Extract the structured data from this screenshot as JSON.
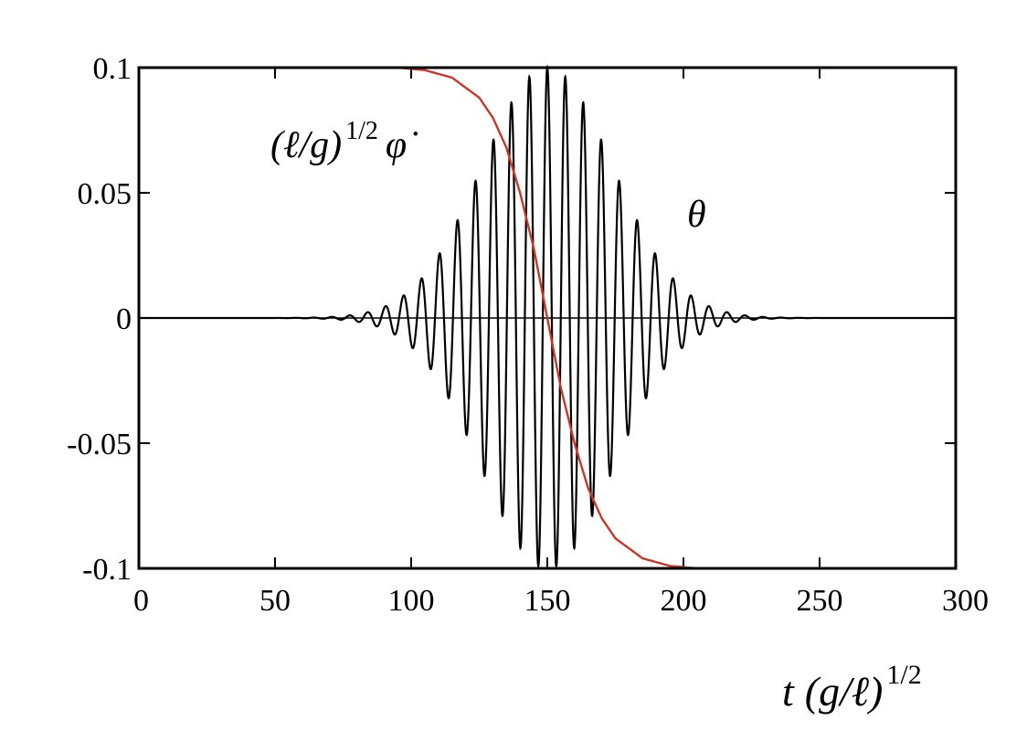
{
  "chart_data": {
    "type": "line",
    "xlabel": "t (g/ℓ)^1/2",
    "xlim": [
      0,
      300
    ],
    "ylim": [
      -0.1,
      0.1
    ],
    "grid": false,
    "x_ticks": [
      "0",
      "50",
      "100",
      "150",
      "200",
      "250",
      "300"
    ],
    "y_ticks": [
      "0.1",
      "0.05",
      "0",
      "-0.05",
      "-0.1"
    ],
    "series": [
      {
        "name": "θ",
        "color": "#000000",
        "description_model": "oscillation with Gaussian envelope",
        "amplitude": 0.1,
        "center": 150,
        "width": 34,
        "period": 6.6,
        "x_range": [
          0,
          300
        ]
      },
      {
        "name": "(ℓ/g)^1/2 φ̇",
        "color": "#c8382a",
        "x": [
          85,
          95,
          105,
          115,
          125,
          130,
          135,
          140,
          145,
          150,
          155,
          160,
          165,
          170,
          175,
          185,
          195,
          205,
          215
        ],
        "y": [
          0.1,
          0.1,
          0.099,
          0.096,
          0.088,
          0.08,
          0.068,
          0.05,
          0.028,
          0.0,
          -0.028,
          -0.05,
          -0.068,
          -0.08,
          -0.088,
          -0.096,
          -0.099,
          -0.1,
          -0.1
        ]
      }
    ],
    "annotations": {
      "theta": "θ",
      "phidot_prefix": "(ℓ/g)",
      "phidot_exp": "1/2",
      "phidot_symbol": "φ̇",
      "xlabel_t": "t",
      "xlabel_paren": "(g/ℓ)",
      "xlabel_exp": "1/2"
    }
  }
}
